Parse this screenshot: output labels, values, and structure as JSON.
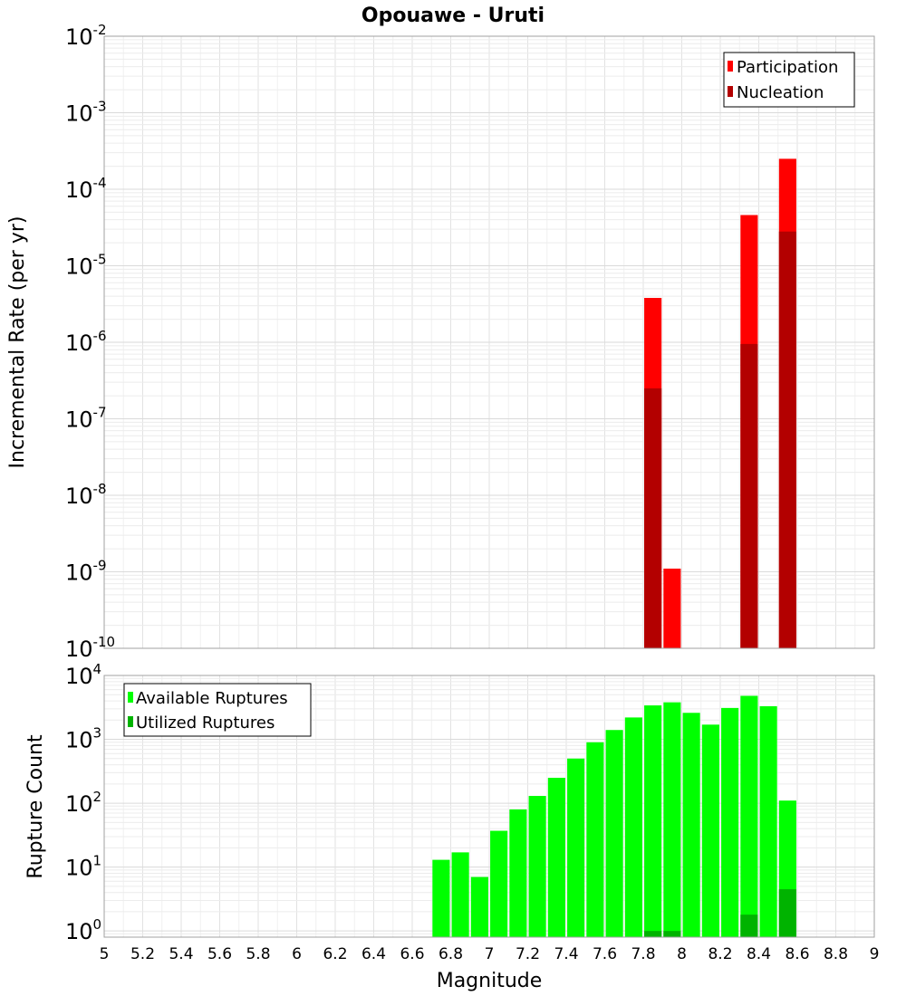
{
  "title": "Opouawe - Uruti",
  "x_axis": {
    "label": "Magnitude",
    "ticks": [
      "5",
      "5.2",
      "5.4",
      "5.6",
      "5.8",
      "6",
      "6.2",
      "6.4",
      "6.6",
      "6.8",
      "7",
      "7.2",
      "7.4",
      "7.6",
      "7.8",
      "8",
      "8.2",
      "8.4",
      "8.6",
      "8.8",
      "9"
    ]
  },
  "chart_data": [
    {
      "type": "bar",
      "ylabel": "Incremental Rate (per yr)",
      "xlim": [
        5,
        9
      ],
      "ylim": [
        1e-10,
        0.01
      ],
      "yscale": "log",
      "grid": true,
      "legend_position": "top-right",
      "y_ticks": [
        {
          "base": "10",
          "exp": "-2",
          "value": 0.01
        },
        {
          "base": "10",
          "exp": "-3",
          "value": 0.001
        },
        {
          "base": "10",
          "exp": "-4",
          "value": 0.0001
        },
        {
          "base": "10",
          "exp": "-5",
          "value": 1e-05
        },
        {
          "base": "10",
          "exp": "-6",
          "value": 1e-06
        },
        {
          "base": "10",
          "exp": "-7",
          "value": 1e-07
        },
        {
          "base": "10",
          "exp": "-8",
          "value": 1e-08
        },
        {
          "base": "10",
          "exp": "-9",
          "value": 1e-09
        },
        {
          "base": "10",
          "exp": "-10",
          "value": 1e-10
        }
      ],
      "series": [
        {
          "name": "Participation",
          "color": "#ff0000",
          "x": [
            7.85,
            7.95,
            8.35,
            8.55
          ],
          "values": [
            3.8e-06,
            1.1e-09,
            4.6e-05,
            0.00025
          ]
        },
        {
          "name": "Nucleation",
          "color": "#b30000",
          "x": [
            7.85,
            8.35,
            8.55
          ],
          "values": [
            2.5e-07,
            9.5e-07,
            2.8e-05
          ]
        }
      ]
    },
    {
      "type": "bar",
      "ylabel": "Rupture Count",
      "xlim": [
        5,
        9
      ],
      "ylim": [
        0.8,
        10000
      ],
      "yscale": "log",
      "grid": true,
      "legend_position": "top-left",
      "y_ticks": [
        {
          "base": "10",
          "exp": "4",
          "value": 10000
        },
        {
          "base": "10",
          "exp": "3",
          "value": 1000
        },
        {
          "base": "10",
          "exp": "2",
          "value": 100
        },
        {
          "base": "10",
          "exp": "1",
          "value": 10
        },
        {
          "base": "10",
          "exp": "0",
          "value": 1
        }
      ],
      "series": [
        {
          "name": "Available Ruptures",
          "color": "#00ff00",
          "x": [
            6.75,
            6.85,
            6.95,
            7.05,
            7.15,
            7.25,
            7.35,
            7.45,
            7.55,
            7.65,
            7.75,
            7.85,
            7.95,
            8.05,
            8.15,
            8.25,
            8.35,
            8.45,
            8.55
          ],
          "values": [
            13,
            17,
            7,
            37,
            80,
            130,
            250,
            500,
            900,
            1400,
            2200,
            3400,
            3800,
            2600,
            1700,
            3100,
            4800,
            3300,
            110
          ]
        },
        {
          "name": "Utilized Ruptures",
          "color": "#00b300",
          "x": [
            7.85,
            7.95,
            8.35,
            8.55
          ],
          "values": [
            1,
            1,
            1.8,
            4.5
          ]
        }
      ]
    }
  ]
}
